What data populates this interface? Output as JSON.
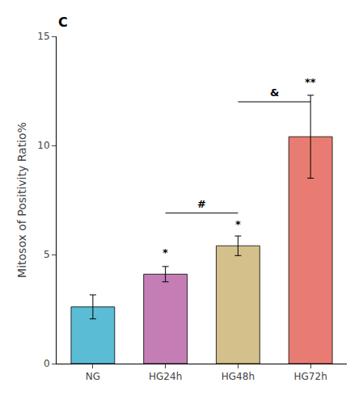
{
  "chart_data": {
    "type": "bar",
    "categories": [
      "NG",
      "HG24h",
      "HG48h",
      "HG72h"
    ],
    "values": [
      2.6,
      4.1,
      5.4,
      10.4
    ],
    "errors": [
      0.55,
      0.35,
      0.45,
      1.9
    ],
    "colors": [
      "#5bbcd6",
      "#c47eb5",
      "#d4c08a",
      "#e87c72"
    ],
    "ylabel": "Mitosox of Positivity Ratio%",
    "ylim": [
      0,
      15
    ],
    "yticks": [
      0,
      5,
      10,
      15
    ],
    "grid": false,
    "panel_label": "C",
    "brackets": [
      {
        "from": "HG24h",
        "to": "HG48h",
        "y": 6.9,
        "text": "#"
      },
      {
        "from": "HG48h",
        "to": "HG72h",
        "y": 12.0,
        "text": "&"
      }
    ],
    "annotations": [
      {
        "category": "HG24h",
        "text": "*",
        "y": 4.75
      },
      {
        "category": "HG48h",
        "text": "*",
        "y": 6.05
      },
      {
        "category": "HG72h",
        "text": "**",
        "y": 12.55
      }
    ]
  }
}
